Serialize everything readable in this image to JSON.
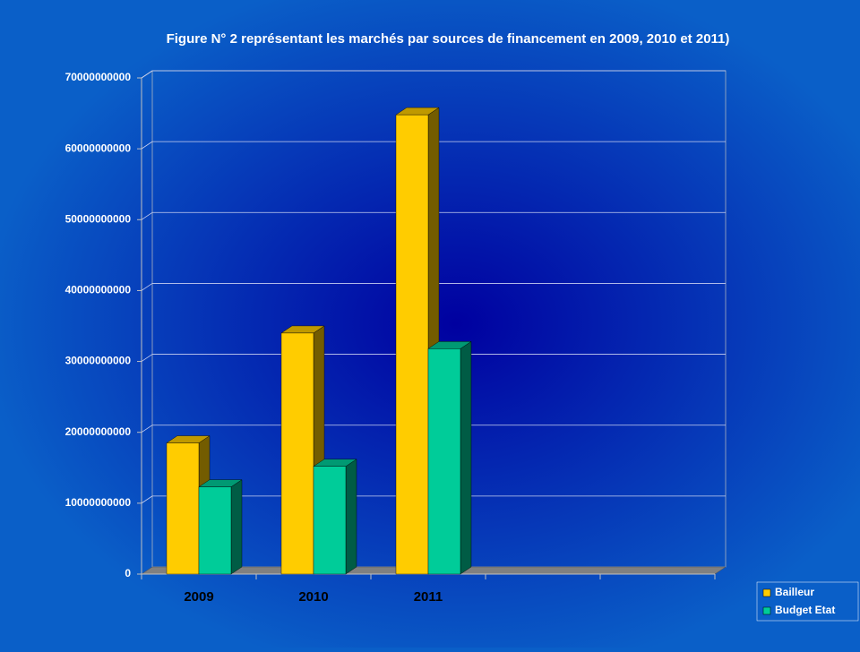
{
  "chart_data": {
    "type": "bar3d",
    "title": "Figure N° 2 représentant les marchés par sources de financement  en 2009, 2010 et 2011)",
    "categories": [
      "2009",
      "2010",
      "2011",
      null,
      null
    ],
    "series": [
      {
        "name": "Bailleur",
        "color": "#ffcc00",
        "values": [
          18500000000,
          34000000000,
          64800000000,
          null,
          null
        ]
      },
      {
        "name": "Budget Etat",
        "color": "#00cc99",
        "values": [
          12300000000,
          15200000000,
          31800000000,
          null,
          null
        ]
      }
    ],
    "ylim": [
      0,
      70000000000
    ],
    "yticks": [
      0,
      10000000000,
      20000000000,
      30000000000,
      40000000000,
      50000000000,
      60000000000,
      70000000000
    ],
    "grid": true,
    "legend": "bottom-right"
  }
}
